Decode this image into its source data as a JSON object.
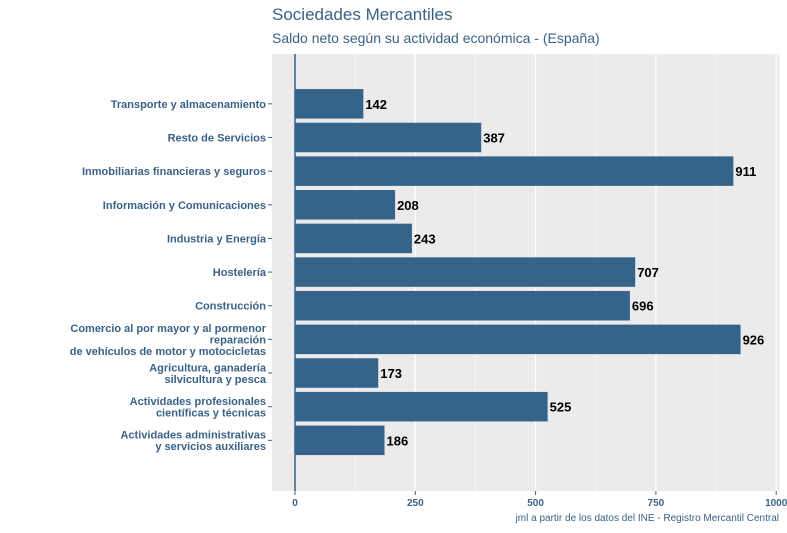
{
  "chart_data": {
    "type": "bar",
    "orientation": "horizontal",
    "title": "Sociedades Mercantiles",
    "subtitle": "Saldo neto según su actividad económica - (España)",
    "caption": "jml a partir de los datos del INE - Registro Mercantil Central",
    "categories": [
      [
        "Transporte y almacenamiento"
      ],
      [
        "Resto de Servicios"
      ],
      [
        "Inmobiliarias financieras y seguros"
      ],
      [
        "Información y Comunicaciones"
      ],
      [
        "Industria y Energía"
      ],
      [
        "Hostelería"
      ],
      [
        "Construcción"
      ],
      [
        "Comercio al por mayor y al pormenor",
        "reparación",
        "de vehículos de motor y motocicletas"
      ],
      [
        "Agricultura, ganadería",
        "silvicultura y pesca"
      ],
      [
        "Actividades profesionales",
        "científicas y técnicas"
      ],
      [
        "Actividades administrativas",
        "y servicios auxiliares"
      ]
    ],
    "values": [
      142,
      387,
      911,
      208,
      243,
      707,
      696,
      926,
      173,
      525,
      186
    ],
    "xlim": [
      0,
      1000
    ],
    "xticks": [
      "0",
      "250",
      "500",
      "750",
      "1000"
    ],
    "xtick_values": [
      0,
      250,
      500,
      750,
      1000
    ],
    "grid": true,
    "colors": {
      "bar": "#35638a",
      "panel": "#ebebeb",
      "grid": "#ffffff",
      "text": "#3a6288",
      "value_text": "#000000"
    }
  }
}
